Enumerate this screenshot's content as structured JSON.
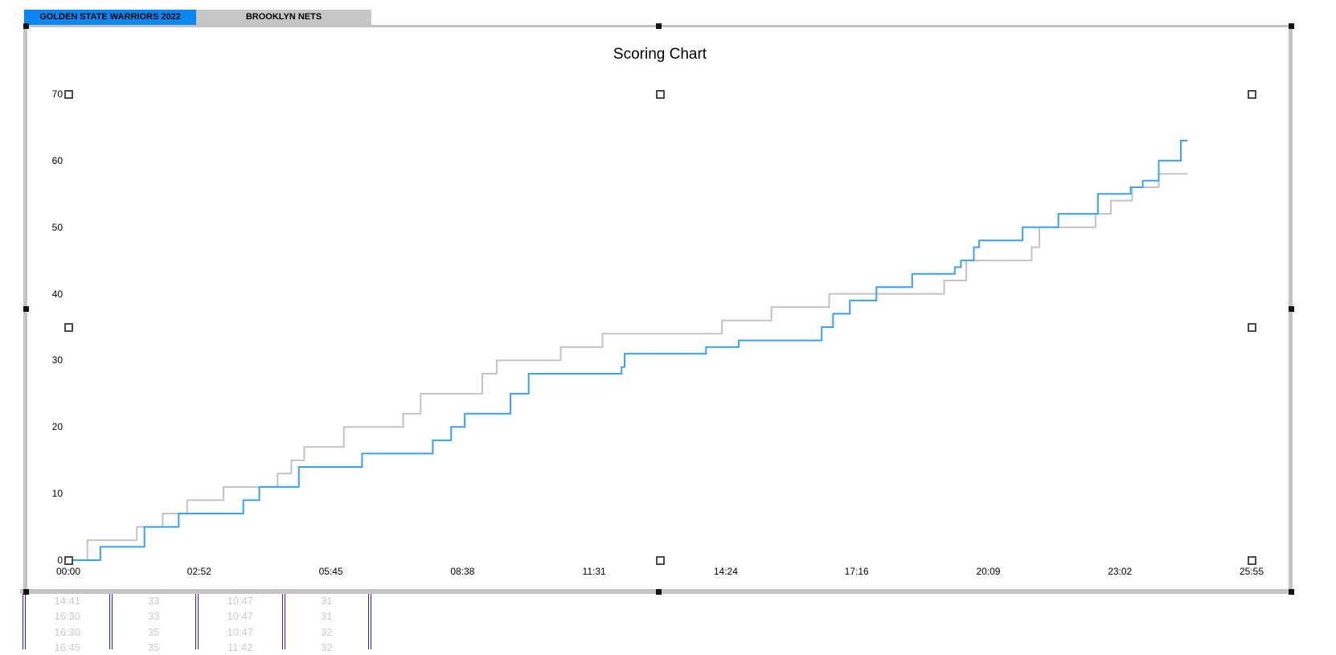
{
  "sheet_tabs": [
    {
      "label": "GOLDEN STATE WARRIORS 2022",
      "active": true
    },
    {
      "label": "BROOKLYN NETS",
      "active": false
    }
  ],
  "chart_data": {
    "type": "line",
    "subtype": "step-after",
    "title": "Scoring Chart",
    "xlabel": "",
    "ylabel": "",
    "grid": false,
    "legend": "none",
    "x_axis": {
      "ticks": [
        "00:00",
        "02:52",
        "05:45",
        "08:38",
        "11:31",
        "14:24",
        "17:16",
        "20:09",
        "23:02",
        "25:55"
      ],
      "min": "00:00",
      "max": "25:55"
    },
    "y_axis": {
      "ticks": [
        0,
        10,
        20,
        30,
        40,
        50,
        60,
        70
      ],
      "min": 0,
      "max": 70
    },
    "series": [
      {
        "name": "Brooklyn Nets",
        "color": "#c3c3c3",
        "end": "24:31",
        "final_score": 58,
        "points": [
          [
            "0:00",
            0
          ],
          [
            "0:25",
            3
          ],
          [
            "1:30",
            5
          ],
          [
            "2:04",
            7
          ],
          [
            "2:36",
            9
          ],
          [
            "3:24",
            11
          ],
          [
            "4:35",
            13
          ],
          [
            "4:53",
            15
          ],
          [
            "5:10",
            17
          ],
          [
            "6:02",
            20
          ],
          [
            "7:20",
            22
          ],
          [
            "7:43",
            25
          ],
          [
            "9:04",
            28
          ],
          [
            "9:23",
            30
          ],
          [
            "10:47",
            31
          ],
          [
            "10:47",
            32
          ],
          [
            "11:42",
            34
          ],
          [
            "14:19",
            36
          ],
          [
            "15:24",
            38
          ],
          [
            "16:40",
            40
          ],
          [
            "19:11",
            42
          ],
          [
            "19:40",
            45
          ],
          [
            "21:06",
            47
          ],
          [
            "21:16",
            50
          ],
          [
            "22:30",
            52
          ],
          [
            "22:50",
            54
          ],
          [
            "23:18",
            56
          ],
          [
            "23:53",
            58
          ]
        ]
      },
      {
        "name": "Golden State Warriors 2022",
        "color": "#3da0f2",
        "end": "24:31",
        "final_score": 63,
        "points": [
          [
            "0:00",
            0
          ],
          [
            "0:42",
            2
          ],
          [
            "1:40",
            5
          ],
          [
            "2:25",
            7
          ],
          [
            "3:50",
            9
          ],
          [
            "4:11",
            11
          ],
          [
            "5:03",
            14
          ],
          [
            "6:26",
            16
          ],
          [
            "7:59",
            18
          ],
          [
            "8:23",
            20
          ],
          [
            "8:41",
            22
          ],
          [
            "9:41",
            25
          ],
          [
            "10:05",
            28
          ],
          [
            "12:07",
            29
          ],
          [
            "12:11",
            31
          ],
          [
            "13:58",
            32
          ],
          [
            "14:41",
            33
          ],
          [
            "16:30",
            35
          ],
          [
            "16:45",
            37
          ],
          [
            "17:07",
            39
          ],
          [
            "17:42",
            41
          ],
          [
            "18:29",
            43
          ],
          [
            "19:25",
            44
          ],
          [
            "19:33",
            45
          ],
          [
            "19:50",
            47
          ],
          [
            "19:57",
            48
          ],
          [
            "20:54",
            50
          ],
          [
            "21:41",
            52
          ],
          [
            "22:33",
            55
          ],
          [
            "23:16",
            56
          ],
          [
            "23:32",
            57
          ],
          [
            "23:53",
            60
          ],
          [
            "24:22",
            63
          ]
        ]
      }
    ]
  },
  "spreadsheet_rows": [
    [
      "14:41",
      "33",
      "10:47",
      "31"
    ],
    [
      "16:30",
      "33",
      "10:47",
      "31"
    ],
    [
      "16:30",
      "35",
      "10:47",
      "32"
    ],
    [
      "16:45",
      "35",
      "11:42",
      "32"
    ]
  ],
  "colors": {
    "active_tab_bg": "#0d87f0",
    "inactive_tab_bg": "#c6c6c6",
    "chart_border": "#c4c4c4",
    "object_handle": "#141414",
    "table_border_blue": "#2323cc",
    "table_text": "#c9c9c9",
    "series_blue": "#3da0f2",
    "series_gray": "#c3c3c3"
  }
}
